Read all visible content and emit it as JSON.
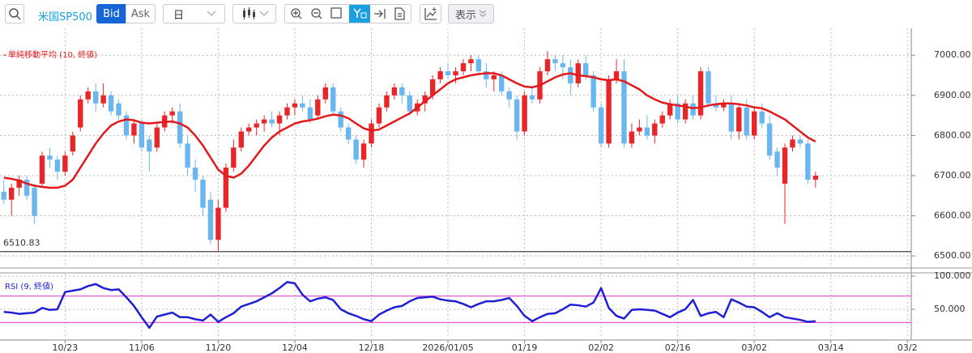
{
  "toolbar": {
    "symbol": "米国SP500",
    "bid": "Bid",
    "ask": "Ask",
    "period": "日",
    "display": "表示"
  },
  "chart_data": [
    {
      "type": "candlestick",
      "up_color": "#e8262a",
      "down_color": "#6bb6ef",
      "grid": true,
      "xlim": [
        -0.5,
        118.5
      ],
      "ylim": [
        6472,
        7067
      ],
      "yticks": [
        {
          "value": 6500,
          "label": "6500.00"
        },
        {
          "value": 6600,
          "label": "6600.00"
        },
        {
          "value": 6700,
          "label": "6700.00"
        },
        {
          "value": 6800,
          "label": "6800.00"
        },
        {
          "value": 6900,
          "label": "6900.00"
        },
        {
          "value": 7000,
          "label": "7000.00"
        }
      ],
      "low_line": 6510.83,
      "ohlc": [
        [
          6660,
          6690,
          6630,
          6640
        ],
        [
          6640,
          6680,
          6600,
          6670
        ],
        [
          6670,
          6700,
          6650,
          6690
        ],
        [
          6690,
          6700,
          6640,
          6650
        ],
        [
          6670,
          6680,
          6580,
          6600
        ],
        [
          6680,
          6760,
          6670,
          6750
        ],
        [
          6750,
          6770,
          6720,
          6740
        ],
        [
          6740,
          6750,
          6690,
          6710
        ],
        [
          6710,
          6760,
          6700,
          6750
        ],
        [
          6760,
          6810,
          6750,
          6800
        ],
        [
          6820,
          6900,
          6810,
          6890
        ],
        [
          6890,
          6920,
          6880,
          6910
        ],
        [
          6910,
          6930,
          6860,
          6880
        ],
        [
          6880,
          6930,
          6870,
          6900
        ],
        [
          6900,
          6910,
          6850,
          6860
        ],
        [
          6880,
          6890,
          6840,
          6850
        ],
        [
          6850,
          6860,
          6790,
          6800
        ],
        [
          6800,
          6840,
          6780,
          6830
        ],
        [
          6830,
          6840,
          6760,
          6770
        ],
        [
          6790,
          6800,
          6710,
          6760
        ],
        [
          6770,
          6830,
          6760,
          6820
        ],
        [
          6820,
          6860,
          6810,
          6850
        ],
        [
          6850,
          6870,
          6830,
          6860
        ],
        [
          6860,
          6880,
          6770,
          6780
        ],
        [
          6780,
          6800,
          6700,
          6720
        ],
        [
          6720,
          6740,
          6660,
          6690
        ],
        [
          6690,
          6700,
          6600,
          6620
        ],
        [
          6640,
          6660,
          6530,
          6540
        ],
        [
          6540,
          6640,
          6510,
          6620
        ],
        [
          6620,
          6730,
          6610,
          6720
        ],
        [
          6720,
          6790,
          6710,
          6770
        ],
        [
          6770,
          6820,
          6760,
          6810
        ],
        [
          6810,
          6830,
          6800,
          6820
        ],
        [
          6820,
          6840,
          6800,
          6830
        ],
        [
          6830,
          6850,
          6810,
          6840
        ],
        [
          6840,
          6860,
          6820,
          6830
        ],
        [
          6830,
          6860,
          6800,
          6850
        ],
        [
          6850,
          6880,
          6840,
          6870
        ],
        [
          6870,
          6890,
          6850,
          6880
        ],
        [
          6880,
          6900,
          6860,
          6870
        ],
        [
          6870,
          6890,
          6830,
          6840
        ],
        [
          6850,
          6900,
          6840,
          6890
        ],
        [
          6890,
          6930,
          6880,
          6920
        ],
        [
          6920,
          6930,
          6850,
          6860
        ],
        [
          6860,
          6870,
          6810,
          6820
        ],
        [
          6820,
          6830,
          6780,
          6790
        ],
        [
          6790,
          6800,
          6730,
          6740
        ],
        [
          6740,
          6790,
          6720,
          6780
        ],
        [
          6780,
          6840,
          6770,
          6830
        ],
        [
          6830,
          6880,
          6820,
          6870
        ],
        [
          6870,
          6910,
          6860,
          6900
        ],
        [
          6900,
          6930,
          6890,
          6920
        ],
        [
          6920,
          6930,
          6880,
          6900
        ],
        [
          6900,
          6910,
          6850,
          6860
        ],
        [
          6860,
          6890,
          6850,
          6880
        ],
        [
          6880,
          6910,
          6860,
          6900
        ],
        [
          6900,
          6950,
          6890,
          6940
        ],
        [
          6940,
          6970,
          6930,
          6960
        ],
        [
          6960,
          6980,
          6940,
          6950
        ],
        [
          6950,
          6970,
          6930,
          6960
        ],
        [
          6960,
          6990,
          6950,
          6980
        ],
        [
          6980,
          7000,
          6960,
          6990
        ],
        [
          6990,
          7000,
          6950,
          6960
        ],
        [
          6960,
          6980,
          6920,
          6940
        ],
        [
          6940,
          6960,
          6910,
          6950
        ],
        [
          6950,
          6960,
          6900,
          6910
        ],
        [
          6910,
          6920,
          6870,
          6890
        ],
        [
          6890,
          6900,
          6790,
          6810
        ],
        [
          6810,
          6910,
          6800,
          6900
        ],
        [
          6900,
          6920,
          6880,
          6890
        ],
        [
          6890,
          6970,
          6880,
          6960
        ],
        [
          6960,
          7010,
          6950,
          6990
        ],
        [
          6990,
          7000,
          6960,
          6980
        ],
        [
          6980,
          7000,
          6940,
          6970
        ],
        [
          6970,
          6990,
          6900,
          6930
        ],
        [
          6930,
          6990,
          6920,
          6980
        ],
        [
          6980,
          7000,
          6940,
          6950
        ],
        [
          6950,
          6960,
          6860,
          6870
        ],
        [
          6870,
          6880,
          6770,
          6780
        ],
        [
          6780,
          6950,
          6770,
          6940
        ],
        [
          6940,
          6990,
          6930,
          6960
        ],
        [
          6960,
          6990,
          6770,
          6780
        ],
        [
          6780,
          6830,
          6770,
          6810
        ],
        [
          6810,
          6840,
          6800,
          6820
        ],
        [
          6820,
          6850,
          6790,
          6800
        ],
        [
          6800,
          6840,
          6780,
          6830
        ],
        [
          6830,
          6860,
          6820,
          6850
        ],
        [
          6850,
          6890,
          6840,
          6880
        ],
        [
          6880,
          6900,
          6830,
          6840
        ],
        [
          6840,
          6890,
          6830,
          6880
        ],
        [
          6880,
          6900,
          6840,
          6850
        ],
        [
          6850,
          6970,
          6840,
          6960
        ],
        [
          6960,
          6970,
          6870,
          6880
        ],
        [
          6880,
          6900,
          6860,
          6870
        ],
        [
          6870,
          6890,
          6860,
          6880
        ],
        [
          6880,
          6900,
          6790,
          6810
        ],
        [
          6810,
          6880,
          6790,
          6870
        ],
        [
          6870,
          6890,
          6790,
          6800
        ],
        [
          6800,
          6870,
          6790,
          6860
        ],
        [
          6860,
          6880,
          6820,
          6830
        ],
        [
          6830,
          6850,
          6740,
          6750
        ],
        [
          6760,
          6770,
          6700,
          6720
        ],
        [
          6680,
          6780,
          6580,
          6770
        ],
        [
          6770,
          6800,
          6760,
          6790
        ],
        [
          6790,
          6800,
          6770,
          6780
        ],
        [
          6780,
          6790,
          6680,
          6690
        ],
        [
          6690,
          6710,
          6670,
          6700
        ]
      ],
      "overlays": [
        {
          "name": "単純移動平均 (10, 終値)",
          "color": "#e3191c",
          "values": [
            6695,
            6692,
            6688,
            6680,
            6675,
            6672,
            6670,
            6670,
            6675,
            6690,
            6720,
            6750,
            6780,
            6805,
            6825,
            6835,
            6840,
            6838,
            6832,
            6830,
            6832,
            6834,
            6835,
            6830,
            6820,
            6800,
            6775,
            6745,
            6715,
            6700,
            6695,
            6705,
            6725,
            6750,
            6775,
            6795,
            6810,
            6820,
            6830,
            6835,
            6838,
            6842,
            6848,
            6852,
            6850,
            6843,
            6830,
            6818,
            6812,
            6815,
            6825,
            6835,
            6845,
            6855,
            6870,
            6885,
            6900,
            6915,
            6930,
            6940,
            6945,
            6950,
            6953,
            6955,
            6955,
            6950,
            6940,
            6930,
            6922,
            6920,
            6925,
            6935,
            6945,
            6952,
            6955,
            6950,
            6948,
            6945,
            6940,
            6938,
            6940,
            6935,
            6925,
            6915,
            6900,
            6890,
            6882,
            6878,
            6875,
            6872,
            6868,
            6870,
            6875,
            6878,
            6880,
            6880,
            6878,
            6875,
            6870,
            6868,
            6860,
            6850,
            6840,
            6825,
            6810,
            6795,
            6785
          ]
        }
      ]
    },
    {
      "type": "line",
      "grid": true,
      "xlim": [
        -0.5,
        118.5
      ],
      "ylim": [
        6,
        103.7
      ],
      "yticks": [
        {
          "value": 100,
          "label": "100.000"
        },
        {
          "value": 50,
          "label": "50.000"
        }
      ],
      "levels": [
        70,
        30
      ],
      "level_color": "#e05bd0",
      "xticks": [
        {
          "value": 8,
          "label": "10/23"
        },
        {
          "value": 18,
          "label": "11/06"
        },
        {
          "value": 28,
          "label": "11/20"
        },
        {
          "value": 38,
          "label": "12/04"
        },
        {
          "value": 48,
          "label": "12/18"
        },
        {
          "value": 58,
          "label": "2026/01/05"
        },
        {
          "value": 68,
          "label": "01/19"
        },
        {
          "value": 78,
          "label": "02/02"
        },
        {
          "value": 88,
          "label": "02/16"
        },
        {
          "value": 98,
          "label": "03/02"
        },
        {
          "value": 108,
          "label": "03/14"
        },
        {
          "value": 118,
          "label": "03/2"
        }
      ],
      "series": [
        {
          "name": "RSI (9, 終値)",
          "color": "#1f1fd6",
          "values": [
            46,
            45,
            43,
            44,
            45,
            52,
            49,
            50,
            76,
            78,
            80,
            85,
            88,
            82,
            79,
            80,
            68,
            55,
            38,
            22,
            39,
            42,
            45,
            38,
            38,
            35,
            33,
            42,
            31,
            38,
            44,
            54,
            58,
            62,
            68,
            74,
            82,
            91,
            89,
            72,
            62,
            66,
            68,
            64,
            50,
            44,
            40,
            35,
            32,
            42,
            48,
            53,
            55,
            62,
            67,
            68,
            69,
            65,
            63,
            62,
            58,
            53,
            58,
            62,
            62,
            64,
            67,
            55,
            40,
            32,
            38,
            43,
            44,
            50,
            57,
            56,
            54,
            60,
            82,
            52,
            40,
            36,
            49,
            50,
            49,
            48,
            43,
            38,
            45,
            50,
            64,
            40,
            44,
            46,
            38,
            65,
            60,
            54,
            53,
            46,
            38,
            44,
            38,
            36,
            34,
            31,
            32
          ]
        }
      ]
    }
  ]
}
